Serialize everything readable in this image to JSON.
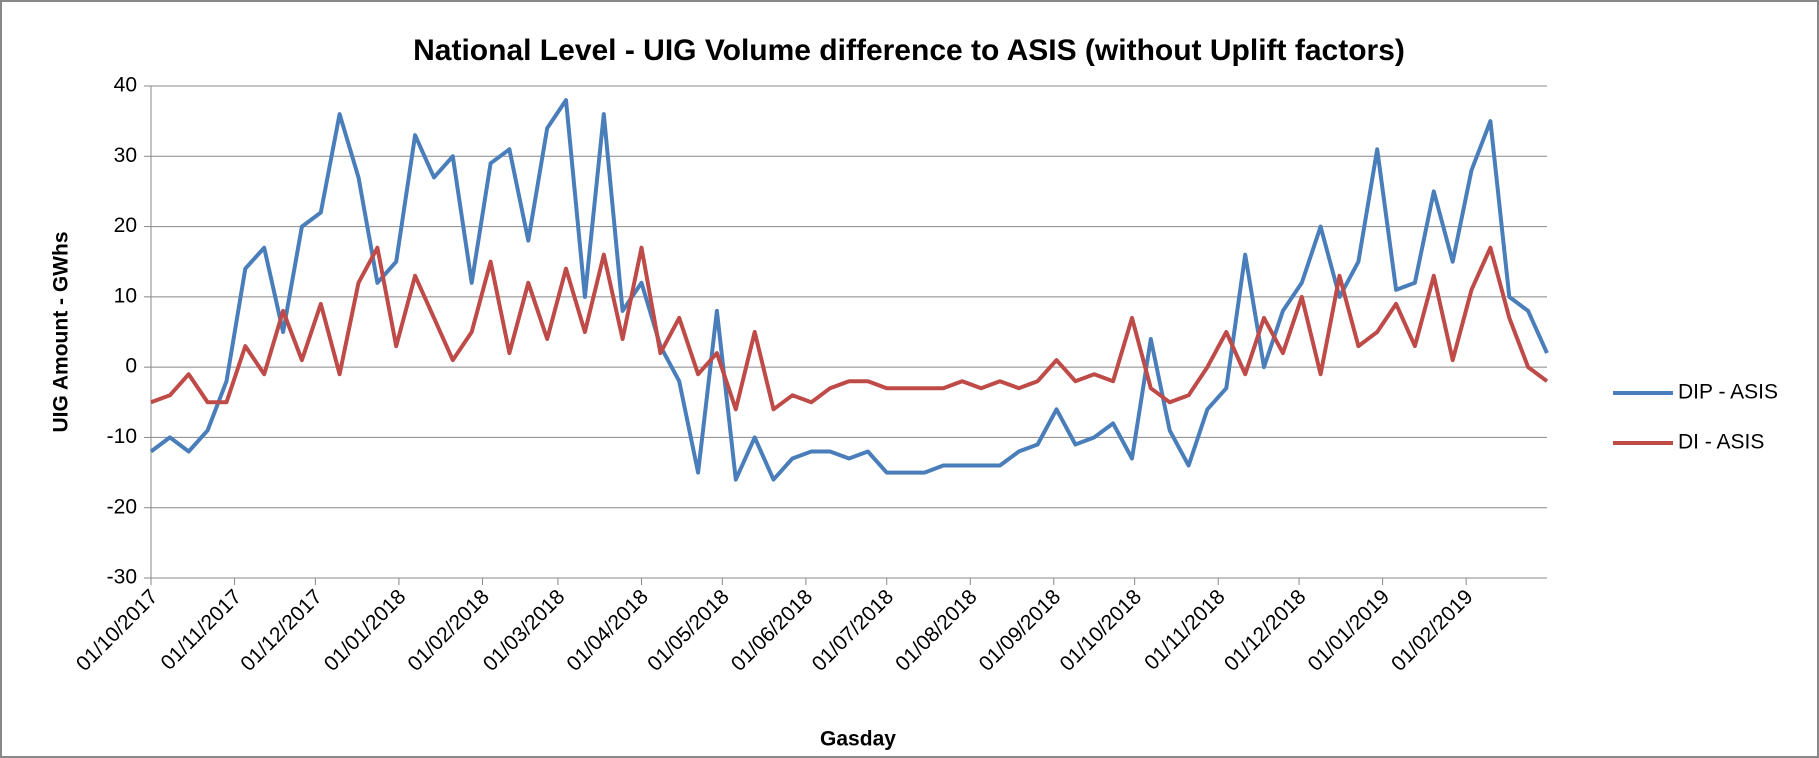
{
  "chart_data": {
    "type": "line",
    "title": "National Level - UIG Volume difference to ASIS (without Uplift factors)",
    "x_label": "Gasday",
    "y_label": "UIG Amount - GWhs",
    "x": [
      "01/10/2017",
      "08/10/2017",
      "15/10/2017",
      "22/10/2017",
      "29/10/2017",
      "05/11/2017",
      "12/11/2017",
      "19/11/2017",
      "26/11/2017",
      "03/12/2017",
      "10/12/2017",
      "17/12/2017",
      "24/12/2017",
      "31/12/2017",
      "07/01/2018",
      "14/01/2018",
      "21/01/2018",
      "28/01/2018",
      "04/02/2018",
      "11/02/2018",
      "18/02/2018",
      "25/02/2018",
      "04/03/2018",
      "11/03/2018",
      "18/03/2018",
      "25/03/2018",
      "01/04/2018",
      "08/04/2018",
      "15/04/2018",
      "22/04/2018",
      "29/04/2018",
      "06/05/2018",
      "13/05/2018",
      "20/05/2018",
      "27/05/2018",
      "03/06/2018",
      "10/06/2018",
      "17/06/2018",
      "24/06/2018",
      "01/07/2018",
      "08/07/2018",
      "15/07/2018",
      "22/07/2018",
      "29/07/2018",
      "05/08/2018",
      "12/08/2018",
      "19/08/2018",
      "26/08/2018",
      "02/09/2018",
      "09/09/2018",
      "16/09/2018",
      "23/09/2018",
      "30/09/2018",
      "07/10/2018",
      "14/10/2018",
      "21/10/2018",
      "28/10/2018",
      "04/11/2018",
      "11/11/2018",
      "18/11/2018",
      "25/11/2018",
      "02/12/2018",
      "09/12/2018",
      "16/12/2018",
      "23/12/2018",
      "30/12/2018",
      "06/01/2019",
      "13/01/2019",
      "20/01/2019",
      "27/01/2019",
      "03/02/2019",
      "10/02/2019",
      "17/02/2019",
      "24/02/2019",
      "03/03/2019"
    ],
    "series": [
      {
        "name": "DIP - ASIS",
        "color": "#4a7ebb",
        "values": [
          -12,
          -10,
          -12,
          -9,
          -2,
          14,
          17,
          5,
          20,
          22,
          36,
          27,
          12,
          15,
          33,
          27,
          30,
          12,
          29,
          31,
          18,
          34,
          38,
          10,
          36,
          8,
          12,
          3,
          -2,
          -15,
          8,
          -16,
          -10,
          -16,
          -13,
          -12,
          -12,
          -13,
          -12,
          -15,
          -15,
          -15,
          -14,
          -14,
          -14,
          -14,
          -12,
          -11,
          -6,
          -11,
          -10,
          -8,
          -13,
          4,
          -9,
          -14,
          -6,
          -3,
          16,
          0,
          8,
          12,
          20,
          10,
          15,
          31,
          11,
          12,
          25,
          15,
          28,
          35,
          10,
          8,
          2
        ]
      },
      {
        "name": "DI - ASIS",
        "color": "#be4b48",
        "values": [
          -5,
          -4,
          -1,
          -5,
          -5,
          3,
          -1,
          8,
          1,
          9,
          -1,
          12,
          17,
          3,
          13,
          7,
          1,
          5,
          15,
          2,
          12,
          4,
          14,
          5,
          16,
          4,
          17,
          2,
          7,
          -1,
          2,
          -6,
          5,
          -6,
          -4,
          -5,
          -3,
          -2,
          -2,
          -3,
          -3,
          -3,
          -3,
          -2,
          -3,
          -2,
          -3,
          -2,
          1,
          -2,
          -1,
          -2,
          7,
          -3,
          -5,
          -4,
          0,
          5,
          -1,
          7,
          2,
          10,
          -1,
          13,
          3,
          5,
          9,
          3,
          13,
          1,
          11,
          17,
          7,
          0,
          -2
        ]
      }
    ],
    "xlim": [
      "01/10/2017",
      "03/03/2019"
    ],
    "xticks": [
      "01/10/2017",
      "01/11/2017",
      "01/12/2017",
      "01/01/2018",
      "01/02/2018",
      "01/03/2018",
      "01/04/2018",
      "01/05/2018",
      "01/06/2018",
      "01/07/2018",
      "01/08/2018",
      "01/09/2018",
      "01/10/2018",
      "01/11/2018",
      "01/12/2018",
      "01/01/2019",
      "01/02/2019"
    ],
    "ylim": [
      -30,
      40
    ],
    "yticks": [
      -30,
      -20,
      -10,
      0,
      10,
      20,
      30,
      40
    ],
    "grid": true,
    "legend": "right"
  }
}
